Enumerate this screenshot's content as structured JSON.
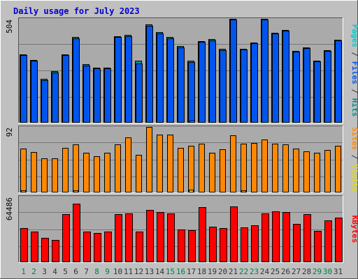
{
  "chart_data": {
    "type": "bar",
    "title": "Daily usage for July 2023",
    "categories": [
      "1",
      "2",
      "3",
      "4",
      "5",
      "6",
      "7",
      "8",
      "9",
      "10",
      "11",
      "12",
      "13",
      "14",
      "15",
      "16",
      "17",
      "18",
      "19",
      "20",
      "21",
      "22",
      "23",
      "24",
      "25",
      "26",
      "27",
      "28",
      "29",
      "30",
      "31"
    ],
    "weekend_days": [
      "1",
      "2",
      "8",
      "9",
      "15",
      "16",
      "22",
      "23",
      "29",
      "30"
    ],
    "panels": [
      {
        "id": "hits",
        "ylabel_parts": [
          {
            "text": "Pages",
            "color": "#00cccc"
          },
          {
            "text": " / ",
            "color": "#333333"
          },
          {
            "text": "Files",
            "color": "#0055ee"
          },
          {
            "text": " / ",
            "color": "#333333"
          },
          {
            "text": "Hits",
            "color": "#009090"
          }
        ],
        "max_label": "504",
        "ymax": 504,
        "series": [
          {
            "name": "Hits",
            "color": "#009090",
            "values": [
              330,
              304,
              210,
              247,
              332,
              415,
              281,
              265,
              265,
              420,
              424,
              301,
              478,
              439,
              416,
              370,
              298,
              395,
              405,
              357,
              503,
              357,
              389,
              503,
              436,
              449,
              346,
              364,
              299,
              351,
              402
            ]
          },
          {
            "name": "Files",
            "color": "#0055ee",
            "values": [
              327,
              300,
              204,
              243,
              328,
              410,
              277,
              262,
              262,
              415,
              420,
              285,
              471,
              433,
              410,
              365,
              293,
              390,
              400,
              352,
              499,
              353,
              384,
              499,
              431,
              445,
              343,
              360,
              296,
              346,
              397
            ]
          },
          {
            "name": "Pages",
            "color": "#00cccc",
            "values": [
              0,
              0,
              0,
              0,
              0,
              0,
              0,
              0,
              0,
              0,
              0,
              0,
              0,
              0,
              0,
              0,
              3,
              0,
              0,
              0,
              0,
              0,
              0,
              0,
              0,
              0,
              0,
              0,
              0,
              0,
              0
            ]
          }
        ]
      },
      {
        "id": "visits",
        "ylabel_parts": [
          {
            "text": "Sites",
            "color": "#ff8800"
          },
          {
            "text": " / ",
            "color": "#333333"
          },
          {
            "text": "Visits",
            "color": "#dddd00"
          }
        ],
        "max_label": "92",
        "ymax": 92,
        "series": [
          {
            "name": "Visits",
            "color": "#ff8800",
            "values": [
              61,
              56,
              47,
              47,
              62,
              67,
              55,
              50,
              55,
              67,
              77,
              52,
              92,
              81,
              81,
              62,
              65,
              68,
              55,
              60,
              80,
              68,
              69,
              74,
              68,
              67,
              61,
              57,
              55,
              59,
              65
            ]
          },
          {
            "name": "Sites",
            "color": "#dddd00",
            "values": [
              1,
              0,
              0,
              0,
              0,
              2,
              0,
              0,
              0,
              0,
              0,
              0,
              0,
              0,
              0,
              0,
              3,
              0,
              0,
              0,
              0,
              1,
              0,
              0,
              0,
              0,
              0,
              0,
              0,
              0,
              0
            ]
          }
        ]
      },
      {
        "id": "kbytes",
        "ylabel_parts": [
          {
            "text": "KBytes",
            "color": "#ff0000"
          }
        ],
        "max_label": "64486",
        "ymax": 64486,
        "series": [
          {
            "name": "KBytes",
            "color": "#ff0000",
            "values": [
              33000,
              29500,
              23500,
              21500,
              47000,
              57500,
              30000,
              28500,
              30000,
              47000,
              47500,
              30000,
              51000,
              49500,
              47500,
              32000,
              31500,
              54000,
              35000,
              33000,
              55000,
              34000,
              36000,
              47500,
              50000,
              49500,
              37500,
              47000,
              30500,
              41000,
              43500
            ]
          }
        ]
      }
    ]
  },
  "colors": {
    "background": "#c0c0c0",
    "plot_area": "#aaaaaa",
    "title": "#0000cc",
    "day_weekday": "#333333",
    "day_weekend": "#008040"
  }
}
